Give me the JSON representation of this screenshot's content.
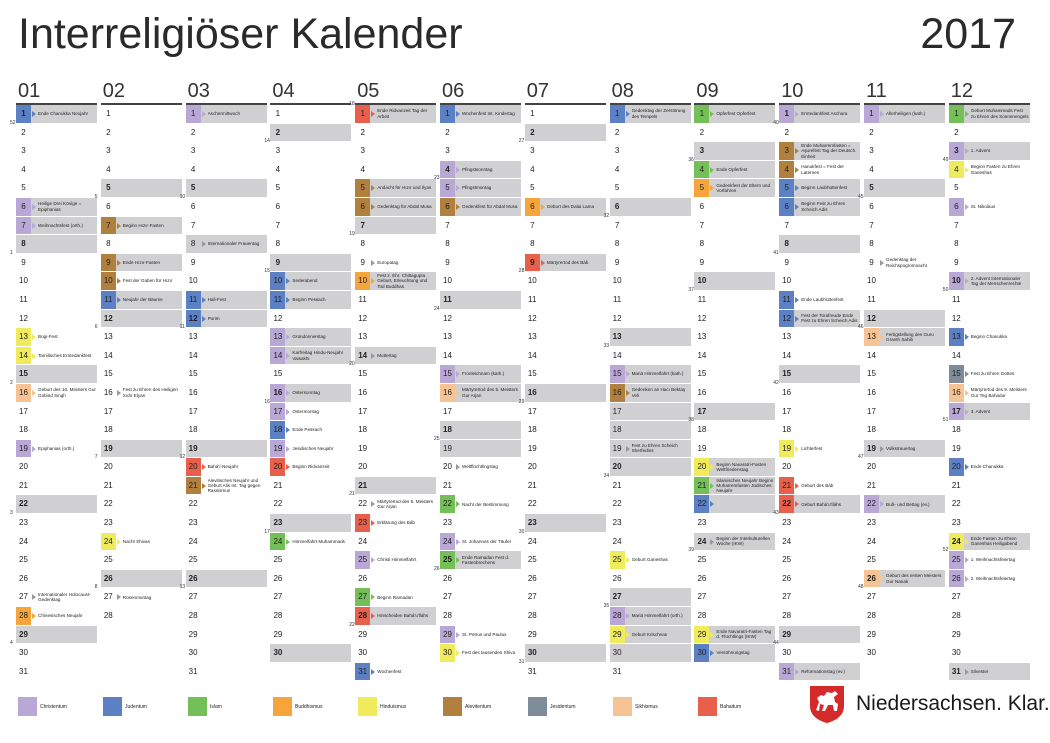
{
  "title": "Interreligiöser Kalender",
  "year": "2017",
  "colors": {
    "Christentum": "#b9a7d6",
    "Judentum": "#5b80c4",
    "Islam": "#75bf59",
    "Buddhismus": "#f5a53c",
    "Hinduismus": "#efeb5d",
    "Alevitentum": "#b1803e",
    "Jesidentum": "#7f8d9b",
    "Sikhismus": "#f6c394",
    "Bahaitum": "#e8604c",
    "gray": "#d0d0d2"
  },
  "legend": [
    {
      "key": "Christentum",
      "label": "Christentum"
    },
    {
      "key": "Judentum",
      "label": "Judentum"
    },
    {
      "key": "Islam",
      "label": "Islam"
    },
    {
      "key": "Buddhismus",
      "label": "Buddhismus"
    },
    {
      "key": "Hinduismus",
      "label": "Hinduismus"
    },
    {
      "key": "Alevitentum",
      "label": "Alevitentum"
    },
    {
      "key": "Jesidentum",
      "label": "Jesidentum"
    },
    {
      "key": "Sikhismus",
      "label": "Sikhismus"
    },
    {
      "key": "Bahaitum",
      "label": "Bahaitum"
    }
  ],
  "brand": "Niedersachsen. Klar.",
  "months": [
    {
      "label": "01",
      "days": 31,
      "bold": [
        1,
        8,
        15,
        22,
        29
      ],
      "gray": [
        1,
        6,
        7,
        8,
        15,
        22,
        29
      ],
      "events": {
        "1": {
          "c": "Judentum",
          "t": "Ende Chanukka Neujahr"
        },
        "6": {
          "c": "Christentum",
          "t": "Heilige Drei Könige = Epiphanias"
        },
        "7": {
          "c": "Christentum",
          "t": "Weihnachtsfest (orth.)"
        },
        "13": {
          "c": "Hinduismus",
          "t": "Bogi-Fest"
        },
        "14": {
          "c": "Hinduismus",
          "t": "Tamilisches Erntedankfest"
        },
        "16": {
          "c": "Sikhismus",
          "t": "Geburt des 10. Meisters Gur Gobind Singh"
        },
        "19": {
          "c": "Christentum",
          "t": "Epiphanias (orth.)"
        },
        "27": {
          "c": "",
          "t": "Internationaler Holocaust-Gedenktag"
        },
        "28": {
          "c": "Buddhismus",
          "t": "Chinesisches Neujahr"
        }
      },
      "weeks": {
        "2": "52",
        "9": "1",
        "16": "2",
        "23": "3",
        "30": "4"
      }
    },
    {
      "label": "02",
      "days": 28,
      "bold": [
        5,
        12,
        19,
        26
      ],
      "gray": [
        5,
        7,
        9,
        11,
        12,
        19,
        26
      ],
      "events": {
        "7": {
          "c": "Alevitentum",
          "t": "Beginn Hızır-Fasten"
        },
        "9": {
          "c": "Alevitentum",
          "t": "Ende Hızır-Fasten"
        },
        "10": {
          "c": "Alevitentum",
          "t": "Fest der Gaben für Hızır"
        },
        "11": {
          "c": "Judentum",
          "t": "Neujahr der Bäume"
        },
        "16": {
          "c": "",
          "t": "Fest zu Ehren des Heiligen Xıdır Elyas"
        },
        "24": {
          "c": "Hinduismus",
          "t": "Nacht Shivas"
        },
        "27": {
          "c": "",
          "t": "Rosenmontag"
        }
      },
      "weeks": {
        "6": "5",
        "13": "6",
        "20": "7",
        "27": "8"
      }
    },
    {
      "label": "03",
      "days": 31,
      "bold": [
        5,
        12,
        19,
        26
      ],
      "gray": [
        1,
        5,
        8,
        11,
        12,
        19,
        26
      ],
      "events": {
        "1": {
          "c": "Christentum",
          "t": "Aschermittwoch"
        },
        "8": {
          "c": "",
          "t": "Internationaler Frauentag"
        },
        "11": {
          "c": "Judentum",
          "t": "Hali-Fest"
        },
        "12": {
          "c": "Judentum",
          "t": "Purim"
        },
        "20": {
          "c": "Bahaitum",
          "t": "Bahá'í-Neujahr"
        },
        "21": {
          "c": "Alevitentum",
          "t": "Alevitisches Neujahr und Geburt Alis Int. Tag gegen Rassismus"
        }
      },
      "weeks": {
        "6": "10",
        "13": "11",
        "20": "12",
        "27": "13"
      }
    },
    {
      "label": "04",
      "days": 30,
      "bold": [
        2,
        9,
        16,
        23,
        30
      ],
      "gray": [
        2,
        9,
        10,
        11,
        13,
        14,
        16,
        23,
        30
      ],
      "events": {
        "10": {
          "c": "Judentum",
          "t": "Sederabend"
        },
        "11": {
          "c": "Judentum",
          "t": "Beginn Pessach"
        },
        "13": {
          "c": "Christentum",
          "t": "Gründonnerstag"
        },
        "14": {
          "c": "Christentum",
          "t": "Karfreitag Hindu-Neujahr Vaisakhi"
        },
        "16": {
          "c": "Christentum",
          "t": "Ostersonntag"
        },
        "17": {
          "c": "Christentum",
          "t": "Ostermontag"
        },
        "18": {
          "c": "Judentum",
          "t": "Ende Pessach"
        },
        "19": {
          "c": "Christentum",
          "t": "Jesidisches Neujahr"
        },
        "20": {
          "c": "Bahaitum",
          "t": "Beginn Ridvanzeit"
        },
        "24": {
          "c": "Islam",
          "t": "Himmelfahrt Muhammads"
        }
      },
      "weeks": {
        "3": "14",
        "10": "15",
        "17": "16",
        "24": "17"
      }
    },
    {
      "label": "05",
      "days": 31,
      "bold": [
        7,
        14,
        21,
        28
      ],
      "gray": [
        1,
        5,
        6,
        7,
        10,
        14,
        21,
        28
      ],
      "events": {
        "1": {
          "c": "Bahaitum",
          "t": "Ende Ridvanzeit Tag der Arbeit"
        },
        "5": {
          "c": "Alevitentum",
          "t": "Andacht für Hızır und Ilyas"
        },
        "6": {
          "c": "Alevitentum",
          "t": "Gedenktag für Abdal Musa"
        },
        "9": {
          "c": "",
          "t": "Europatag"
        },
        "10": {
          "c": "Buddhismus",
          "t": "Fest z. Ehr. Chittagupta Geburt, Erleuchtung und Tod Buddhas"
        },
        "14": {
          "c": "",
          "t": "Muttertag"
        },
        "22": {
          "c": "",
          "t": "Märtyrertod des 5. Meisters Gur Arjan"
        },
        "23": {
          "c": "Bahaitum",
          "t": "Erklärung des Báb"
        },
        "25": {
          "c": "Christentum",
          "t": "Christi Himmelfahrt"
        },
        "27": {
          "c": "Islam",
          "t": "Beginn Ramadan"
        },
        "28": {
          "c": "Bahaitum",
          "t": "Hinscheiden Bahá'u'lláhs"
        },
        "31": {
          "c": "Judentum",
          "t": "Wochenfest"
        }
      },
      "weeks": {
        "1": "18",
        "8": "19",
        "15": "20",
        "22": "21",
        "29": "22"
      }
    },
    {
      "label": "06",
      "days": 30,
      "bold": [
        4,
        11,
        18,
        25
      ],
      "gray": [
        1,
        4,
        5,
        6,
        11,
        15,
        16,
        18,
        19,
        25
      ],
      "events": {
        "1": {
          "c": "Judentum",
          "t": "Wochenfest Int. Kindertag"
        },
        "4": {
          "c": "Christentum",
          "t": "Pfingstsonntag"
        },
        "5": {
          "c": "Christentum",
          "t": "Pfingstmontag"
        },
        "6": {
          "c": "Alevitentum",
          "t": "Gedenkfest für Abdal Musa"
        },
        "15": {
          "c": "Christentum",
          "t": "Fronleichnam (kath.)"
        },
        "16": {
          "c": "Sikhismus",
          "t": "Märtyrertod des 5. Meisters Gur Arjan"
        },
        "20": {
          "c": "",
          "t": "Weltflüchtlingstag"
        },
        "22": {
          "c": "Islam",
          "t": "Nacht der Bestimmung"
        },
        "24": {
          "c": "Christentum",
          "t": "St. Johannes der Täufer"
        },
        "25": {
          "c": "Islam",
          "t": "Ende Ramadan Fest d. Fastenbrechens"
        },
        "29": {
          "c": "Christentum",
          "t": "St. Petrus und Paulus"
        },
        "30": {
          "c": "Hinduismus",
          "t": "Fest des tausenden Shiva"
        }
      },
      "weeks": {
        "5": "23",
        "12": "24",
        "19": "25",
        "26": "26"
      }
    },
    {
      "label": "07",
      "days": 31,
      "bold": [
        2,
        9,
        16,
        23,
        30
      ],
      "gray": [
        2,
        6,
        9,
        16,
        23,
        30
      ],
      "events": {
        "6": {
          "c": "Buddhismus",
          "t": "Geburt des Dalai Lama"
        },
        "9": {
          "c": "Bahaitum",
          "t": "Märtyrertod des Báb"
        }
      },
      "weeks": {
        "3": "27",
        "10": "28",
        "17": "29",
        "24": "30",
        "31": "31"
      }
    },
    {
      "label": "08",
      "days": 31,
      "bold": [
        6,
        13,
        20,
        27
      ],
      "gray": [
        1,
        6,
        13,
        15,
        16,
        17,
        18,
        19,
        20,
        27,
        28,
        29,
        30
      ],
      "events": {
        "1": {
          "c": "Judentum",
          "t": "Gedenktag der Zerstörung des Tempels"
        },
        "15": {
          "c": "Christentum",
          "t": "Mariä Himmelfahrt (kath.)"
        },
        "16": {
          "c": "Alevitentum",
          "t": "Gedenken an Hacı Bektaş Veli"
        },
        "19": {
          "c": "",
          "t": "Fest zu Ehren Scheich Sherfedins"
        },
        "25": {
          "c": "Hinduismus",
          "t": "Geburt Ganeshas"
        },
        "28": {
          "c": "Christentum",
          "t": "Mariä Himmelfahrt (orth.)"
        },
        "29": {
          "c": "Hinduismus",
          "t": "Geburt Krischnas"
        }
      },
      "weeks": {
        "7": "32",
        "14": "33",
        "21": "34",
        "28": "35"
      }
    },
    {
      "label": "09",
      "days": 30,
      "bold": [
        3,
        10,
        17,
        24
      ],
      "gray": [
        1,
        3,
        4,
        5,
        10,
        17,
        20,
        21,
        22,
        24,
        29,
        30
      ],
      "events": {
        "1": {
          "c": "Islam",
          "t": "Opferfest Opferfest"
        },
        "4": {
          "c": "Islam",
          "t": "Ende Opferfest"
        },
        "5": {
          "c": "Buddhismus",
          "t": "Gedenkfest der Eltern und Vorfahren"
        },
        "20": {
          "c": "Hinduismus",
          "t": "Beginn Navaratri-Fasten Weltfriedenstag"
        },
        "21": {
          "c": "Islam",
          "t": "Islamisches Neujahr Beginn Muharremfasten Jüdisches Neujahr"
        },
        "22": {
          "c": "Judentum",
          "t": ""
        },
        "24": {
          "c": "",
          "t": "Beginn der Interkulturellen Woche (IKW)"
        },
        "29": {
          "c": "Hinduismus",
          "t": "Ende Navaratri-Fasten Tag d. Flüchtlings (IKW)"
        },
        "30": {
          "c": "Judentum",
          "t": "Versöhnungstag"
        }
      },
      "weeks": {
        "4": "36",
        "11": "37",
        "18": "38",
        "25": "39"
      }
    },
    {
      "label": "10",
      "days": 31,
      "bold": [
        1,
        8,
        15,
        22,
        29
      ],
      "gray": [
        1,
        3,
        5,
        6,
        8,
        12,
        15,
        22,
        29,
        31
      ],
      "events": {
        "1": {
          "c": "Christentum",
          "t": "Erntedankfest Aschura"
        },
        "3": {
          "c": "Alevitentum",
          "t": "Ende Muharremfasten = Aşurefest Tag der Deutsch. Einheit"
        },
        "4": {
          "c": "Alevitentum",
          "t": "Hanukfest = Fest der Laternen"
        },
        "5": {
          "c": "Judentum",
          "t": "Beginn Laubhüttenfest"
        },
        "6": {
          "c": "Judentum",
          "t": "Beginn Fest zu Ehren Scheich Adis"
        },
        "11": {
          "c": "Judentum",
          "t": "Ende Laubhüttenfest"
        },
        "12": {
          "c": "Judentum",
          "t": "Fest der Torafreude Ende Fest zu Ehren Scheich Adis"
        },
        "19": {
          "c": "Hinduismus",
          "t": "Lichterfest"
        },
        "21": {
          "c": "Bahaitum",
          "t": "Geburt des Báb"
        },
        "22": {
          "c": "Bahaitum",
          "t": "Geburt Bahá'u'lláhs"
        },
        "31": {
          "c": "Christentum",
          "t": "Reformationstag (ev.)"
        }
      },
      "weeks": {
        "2": "40",
        "9": "41",
        "16": "42",
        "23": "43",
        "30": "44"
      }
    },
    {
      "label": "11",
      "days": 30,
      "bold": [
        5,
        12,
        19,
        26
      ],
      "gray": [
        1,
        5,
        12,
        13,
        19,
        22,
        26
      ],
      "events": {
        "1": {
          "c": "Christentum",
          "t": "Allerheiligen (kath.)"
        },
        "9": {
          "c": "",
          "t": "Gedenktag der Reichspogromnacht"
        },
        "13": {
          "c": "Sikhismus",
          "t": "Fertigstellung des Guru Granth Sahib"
        },
        "19": {
          "c": "",
          "t": "Volkstrauertag"
        },
        "22": {
          "c": "Christentum",
          "t": "Buß- und Bettag (ev.)"
        },
        "26": {
          "c": "Sikhismus",
          "t": "Geburt des ersten Meisters Gur Nanak"
        }
      },
      "weeks": {
        "6": "45",
        "13": "46",
        "20": "47",
        "27": "48"
      }
    },
    {
      "label": "12",
      "days": 31,
      "bold": [
        3,
        10,
        17,
        24,
        31
      ],
      "gray": [
        1,
        3,
        10,
        17,
        24,
        31
      ],
      "events": {
        "1": {
          "c": "Islam",
          "t": "Geburt Muhammads Fest zu Ehren des Sonnenengels"
        },
        "3": {
          "c": "Christentum",
          "t": "1. Advent"
        },
        "4": {
          "c": "Hinduismus",
          "t": "Beginn Fasten zu Ehren Ganeshas"
        },
        "6": {
          "c": "Christentum",
          "t": "St. Nikolaus"
        },
        "10": {
          "c": "Christentum",
          "t": "2. Advent Internationaler Tag der Menschenrechte"
        },
        "13": {
          "c": "Judentum",
          "t": "Beginn Chanukka"
        },
        "15": {
          "c": "Jesidentum",
          "t": "Fest zu Ehren Gottes"
        },
        "16": {
          "c": "Sikhismus",
          "t": "Märtyrertod des 9. Meisters Gur Teg Bahadur"
        },
        "17": {
          "c": "Christentum",
          "t": "3. Advent"
        },
        "20": {
          "c": "Judentum",
          "t": "Ende Chanukka"
        },
        "24": {
          "c": "Hinduismus",
          "t": "Ende Fasten zu Ehren Ganeshas Heiligabend"
        },
        "25": {
          "c": "Christentum",
          "t": "1. Weihnachtsfeiertag"
        },
        "26": {
          "c": "Christentum",
          "t": "2. Weihnachtsfeiertag"
        },
        "31": {
          "c": "",
          "t": "Silvester"
        }
      },
      "weeks": {
        "4": "49",
        "11": "50",
        "18": "51",
        "25": "52"
      }
    }
  ]
}
